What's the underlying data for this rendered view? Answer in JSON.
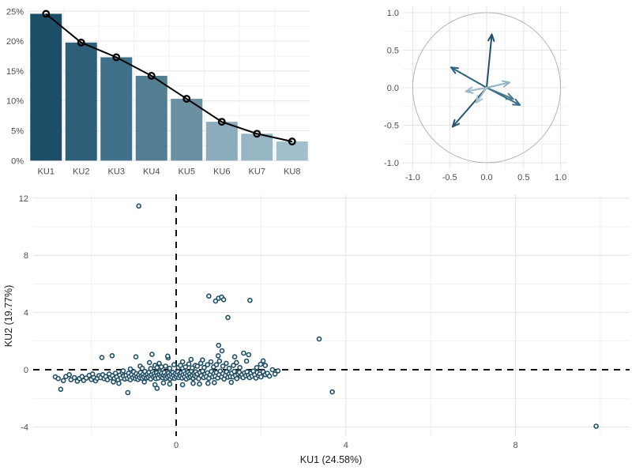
{
  "styles": {
    "background": "#ffffff",
    "grid_major": "#e4e4e4",
    "grid_minor": "#f1f1f1",
    "tick_label_color": "#4d4d4d",
    "axis_title_color": "#1a1a1a"
  },
  "chart_data": [
    {
      "id": "scree",
      "type": "bar",
      "title": "",
      "categories": [
        "KU1",
        "KU2",
        "KU3",
        "KU4",
        "KU5",
        "KU6",
        "KU7",
        "KU8"
      ],
      "values": [
        24.58,
        19.77,
        17.3,
        14.2,
        10.35,
        6.5,
        4.5,
        3.2
      ],
      "value_format": "percent",
      "bar_colors": [
        "#1d4e68",
        "#2f5e78",
        "#41708a",
        "#537e92",
        "#6b90a2",
        "#8aacbc",
        "#97b6c4",
        "#a3bfcb"
      ],
      "line_color": "#000000",
      "marker": "open-circle",
      "y_ticks": [
        "0%",
        "5%",
        "10%",
        "15%",
        "20%",
        "25%"
      ],
      "y_tick_values": [
        0,
        5,
        10,
        15,
        20,
        25
      ],
      "ylim": [
        0,
        26
      ],
      "grid": true,
      "legend": "none"
    },
    {
      "id": "var_circle",
      "type": "scatter",
      "subtype": "pca-correlation-circle",
      "title": "",
      "x_ticks": [
        "-1.0",
        "-0.5",
        "0.0",
        "0.5",
        "1.0"
      ],
      "y_ticks": [
        "-1.0",
        "-0.5",
        "0.0",
        "0.5",
        "1.0"
      ],
      "tick_values": [
        -1,
        -0.5,
        0,
        0.5,
        1
      ],
      "xlim": [
        -1.15,
        1.1
      ],
      "ylim": [
        -1.1,
        1.1
      ],
      "circle_color": "#b3b3b3",
      "grid": true,
      "arrows": [
        {
          "x": 0.07,
          "y": 0.71,
          "color": "#1f5066"
        },
        {
          "x": -0.48,
          "y": 0.27,
          "color": "#2e617c"
        },
        {
          "x": -0.46,
          "y": -0.52,
          "color": "#235572"
        },
        {
          "x": 0.45,
          "y": -0.23,
          "color": "#3a6c86"
        },
        {
          "x": 0.36,
          "y": -0.15,
          "color": "#4a7a92"
        },
        {
          "x": 0.31,
          "y": 0.07,
          "color": "#8fb2c3"
        },
        {
          "x": -0.28,
          "y": -0.05,
          "color": "#9bbac8"
        },
        {
          "x": -0.14,
          "y": -0.2,
          "color": "#a9c3ce"
        }
      ]
    },
    {
      "id": "scores",
      "type": "scatter",
      "title": "",
      "xlabel": "KU1 (24.58%)",
      "ylabel": "KU2 (19.77%)",
      "x_ticks": [
        "0",
        "4",
        "8"
      ],
      "x_tick_values": [
        0,
        4,
        8
      ],
      "y_ticks": [
        "-4",
        "0",
        "4",
        "8",
        "12"
      ],
      "y_tick_values": [
        -4,
        0,
        4,
        8,
        12
      ],
      "x_minor": [
        -2,
        2,
        6,
        10
      ],
      "y_minor": [
        -2,
        2,
        6,
        10
      ],
      "xlim": [
        -3.4,
        10.7
      ],
      "ylim": [
        -4.5,
        12.3
      ],
      "ref_lines": {
        "x": 0,
        "y": 0,
        "style": "dashed",
        "color": "#111111"
      },
      "point_color": "#1f4e66",
      "grid": true,
      "points": [
        [
          -2.85,
          -0.5
        ],
        [
          -2.78,
          -0.62
        ],
        [
          -2.72,
          -1.37
        ],
        [
          -2.66,
          -0.76
        ],
        [
          -2.6,
          -0.48
        ],
        [
          -2.52,
          -0.35
        ],
        [
          -2.48,
          -0.7
        ],
        [
          -2.4,
          -0.55
        ],
        [
          -2.33,
          -0.8
        ],
        [
          -2.28,
          -0.62
        ],
        [
          -2.22,
          -0.48
        ],
        [
          -2.18,
          -0.75
        ],
        [
          -2.12,
          -0.58
        ],
        [
          -2.05,
          -0.4
        ],
        [
          -2.0,
          -0.68
        ],
        [
          -1.95,
          -0.52
        ],
        [
          -1.9,
          -0.78
        ],
        [
          -1.86,
          -0.6
        ],
        [
          -1.82,
          -0.42
        ],
        [
          -1.97,
          -0.3
        ],
        [
          -1.78,
          -0.55
        ],
        [
          -1.73,
          -0.35
        ],
        [
          -1.7,
          -0.62
        ],
        [
          -1.66,
          -0.48
        ],
        [
          -1.62,
          -0.7
        ],
        [
          -1.58,
          -0.3
        ],
        [
          -1.55,
          -0.55
        ],
        [
          -1.5,
          -0.42
        ],
        [
          -1.46,
          -0.62
        ],
        [
          -1.43,
          -0.25
        ],
        [
          -1.4,
          -0.5
        ],
        [
          -1.37,
          -0.72
        ],
        [
          -1.33,
          -0.38
        ],
        [
          -1.3,
          -0.58
        ],
        [
          -1.27,
          -0.2
        ],
        [
          -1.24,
          -0.45
        ],
        [
          -1.21,
          -0.65
        ],
        [
          -1.48,
          -0.85
        ],
        [
          -1.35,
          -0.95
        ],
        [
          -1.25,
          -0.08
        ],
        [
          -1.18,
          -0.4
        ],
        [
          -1.15,
          -0.6
        ],
        [
          -1.12,
          -0.25
        ],
        [
          -1.1,
          -0.48
        ],
        [
          -1.08,
          -0.7
        ],
        [
          -1.05,
          -0.35
        ],
        [
          -1.02,
          -0.55
        ],
        [
          -1.0,
          -0.15
        ],
        [
          -0.98,
          -0.42
        ],
        [
          -0.96,
          -0.62
        ],
        [
          -0.94,
          -0.28
        ],
        [
          -0.92,
          -0.5
        ],
        [
          -0.9,
          -0.68
        ],
        [
          -0.88,
          -0.38
        ],
        [
          -0.86,
          -0.55
        ],
        [
          -0.84,
          -0.2
        ],
        [
          -0.82,
          -0.45
        ],
        [
          -0.8,
          -0.6
        ],
        [
          -0.78,
          -0.32
        ],
        [
          -0.76,
          -0.5
        ],
        [
          -0.74,
          -0.12
        ],
        [
          -0.72,
          -0.4
        ],
        [
          -0.7,
          -0.58
        ],
        [
          -0.85,
          0.25
        ],
        [
          -0.8,
          0.1
        ],
        [
          -1.08,
          0.05
        ],
        [
          -0.68,
          -0.3
        ],
        [
          -0.66,
          -0.52
        ],
        [
          -0.64,
          -0.18
        ],
        [
          -0.62,
          -0.42
        ],
        [
          -0.6,
          -0.65
        ],
        [
          -0.58,
          -0.35
        ],
        [
          -0.56,
          -0.12
        ],
        [
          -0.54,
          -0.5
        ],
        [
          -0.52,
          -0.28
        ],
        [
          -0.5,
          -0.45
        ],
        [
          -0.48,
          -0.62
        ],
        [
          -0.46,
          -0.22
        ],
        [
          -0.44,
          -0.4
        ],
        [
          -0.42,
          -0.58
        ],
        [
          -0.4,
          -0.3
        ],
        [
          -0.38,
          -0.15
        ],
        [
          -0.36,
          -0.48
        ],
        [
          -0.34,
          -0.25
        ],
        [
          -0.32,
          -0.55
        ],
        [
          -0.3,
          -0.38
        ],
        [
          -0.5,
          0.3
        ],
        [
          -0.45,
          0.15
        ],
        [
          -0.4,
          0.45
        ],
        [
          -0.35,
          0.2
        ],
        [
          -0.6,
          0.08
        ],
        [
          -0.63,
          0.5
        ],
        [
          -0.28,
          -0.2
        ],
        [
          -0.26,
          -0.45
        ],
        [
          -0.24,
          -0.6
        ],
        [
          -0.22,
          -0.32
        ],
        [
          -0.2,
          -0.5
        ],
        [
          -0.18,
          -0.25
        ],
        [
          -0.16,
          -0.42
        ],
        [
          -0.14,
          -0.65
        ],
        [
          -0.12,
          -0.3
        ],
        [
          -0.1,
          -0.52
        ],
        [
          -0.08,
          -0.18
        ],
        [
          -0.06,
          -0.4
        ],
        [
          -0.04,
          -0.6
        ],
        [
          -0.02,
          -0.28
        ],
        [
          0.0,
          -0.48
        ],
        [
          0.02,
          -0.35
        ],
        [
          0.04,
          -0.15
        ],
        [
          0.06,
          -0.55
        ],
        [
          0.08,
          -0.3
        ],
        [
          -0.25,
          0.25
        ],
        [
          -0.15,
          0.1
        ],
        [
          -0.19,
          0.83
        ],
        [
          -0.05,
          0.35
        ],
        [
          0.05,
          0.15
        ],
        [
          0.1,
          -0.45
        ],
        [
          0.12,
          -0.22
        ],
        [
          0.14,
          -0.58
        ],
        [
          0.16,
          -0.35
        ],
        [
          0.18,
          -0.12
        ],
        [
          0.2,
          -0.5
        ],
        [
          0.22,
          -0.28
        ],
        [
          0.24,
          -0.65
        ],
        [
          0.26,
          -0.4
        ],
        [
          0.28,
          -0.18
        ],
        [
          0.3,
          -0.55
        ],
        [
          0.32,
          -0.3
        ],
        [
          0.34,
          -0.48
        ],
        [
          0.36,
          -0.1
        ],
        [
          0.38,
          -0.38
        ],
        [
          0.4,
          -0.6
        ],
        [
          0.42,
          -0.25
        ],
        [
          0.44,
          -0.45
        ],
        [
          0.1,
          0.3
        ],
        [
          0.15,
          0.55
        ],
        [
          0.22,
          0.2
        ],
        [
          0.3,
          0.4
        ],
        [
          0.38,
          0.12
        ],
        [
          0.45,
          0.3
        ],
        [
          0.35,
          0.72
        ],
        [
          0.62,
          0.68
        ],
        [
          0.46,
          -0.15
        ],
        [
          0.48,
          -0.52
        ],
        [
          0.5,
          -0.3
        ],
        [
          0.53,
          -0.62
        ],
        [
          0.56,
          -0.2
        ],
        [
          0.59,
          -0.42
        ],
        [
          0.62,
          -0.1
        ],
        [
          0.65,
          -0.55
        ],
        [
          0.68,
          -0.32
        ],
        [
          0.71,
          -0.48
        ],
        [
          0.74,
          -0.22
        ],
        [
          0.77,
          -0.6
        ],
        [
          0.8,
          -0.35
        ],
        [
          0.83,
          -0.12
        ],
        [
          0.86,
          -0.5
        ],
        [
          0.89,
          -0.28
        ],
        [
          0.5,
          0.25
        ],
        [
          0.58,
          0.45
        ],
        [
          0.66,
          0.15
        ],
        [
          0.74,
          0.35
        ],
        [
          0.82,
          0.55
        ],
        [
          0.88,
          0.2
        ],
        [
          0.92,
          -0.45
        ],
        [
          0.95,
          -0.2
        ],
        [
          0.98,
          -0.58
        ],
        [
          1.01,
          -0.35
        ],
        [
          1.04,
          -0.1
        ],
        [
          1.07,
          -0.5
        ],
        [
          1.1,
          -0.28
        ],
        [
          1.13,
          -0.65
        ],
        [
          1.16,
          -0.4
        ],
        [
          1.19,
          -0.15
        ],
        [
          1.22,
          -0.52
        ],
        [
          1.25,
          -0.3
        ],
        [
          1.28,
          -0.48
        ],
        [
          0.95,
          0.35
        ],
        [
          1.02,
          0.6
        ],
        [
          1.1,
          0.25
        ],
        [
          1.18,
          0.45
        ],
        [
          1.25,
          0.1
        ],
        [
          1.31,
          -0.25
        ],
        [
          1.34,
          -0.5
        ],
        [
          1.37,
          -0.12
        ],
        [
          1.4,
          -0.4
        ],
        [
          1.43,
          -0.62
        ],
        [
          1.46,
          -0.3
        ],
        [
          1.49,
          -0.18
        ],
        [
          1.52,
          -0.45
        ],
        [
          1.55,
          -0.35
        ],
        [
          1.58,
          -0.55
        ],
        [
          1.61,
          -0.22
        ],
        [
          1.64,
          -0.42
        ],
        [
          1.35,
          0.3
        ],
        [
          1.42,
          0.5
        ],
        [
          1.5,
          0.15
        ],
        [
          1.66,
          0.6
        ],
        [
          1.67,
          -0.15
        ],
        [
          1.7,
          -0.38
        ],
        [
          1.73,
          -0.55
        ],
        [
          1.76,
          -0.25
        ],
        [
          1.79,
          -0.45
        ],
        [
          1.82,
          -0.1
        ],
        [
          1.85,
          -0.35
        ],
        [
          1.88,
          -0.58
        ],
        [
          1.91,
          -0.2
        ],
        [
          1.94,
          -0.42
        ],
        [
          1.97,
          -0.3
        ],
        [
          2.0,
          -0.5
        ],
        [
          2.05,
          -0.15
        ],
        [
          2.1,
          -0.35
        ],
        [
          2.15,
          -0.25
        ],
        [
          2.2,
          -0.45
        ],
        [
          2.27,
          0.0
        ],
        [
          2.33,
          -0.3
        ],
        [
          2.4,
          -0.08
        ],
        [
          2.1,
          0.3
        ],
        [
          1.9,
          0.15
        ],
        [
          2.05,
          0.62
        ],
        [
          -0.5,
          -1.05
        ],
        [
          -0.15,
          -1.0
        ],
        [
          0.15,
          -1.05
        ],
        [
          0.55,
          -1.0
        ],
        [
          -0.3,
          -0.92
        ],
        [
          0.75,
          -0.95
        ],
        [
          -0.45,
          -1.3
        ],
        [
          0.4,
          -0.95
        ],
        [
          0.9,
          -0.9
        ],
        [
          1.3,
          -0.88
        ],
        [
          -0.75,
          -0.85
        ],
        [
          1.0,
          1.7
        ],
        [
          1.08,
          1.32
        ],
        [
          0.99,
          0.97
        ],
        [
          1.59,
          1.16
        ],
        [
          1.38,
          0.9
        ],
        [
          1.99,
          0.38
        ],
        [
          1.71,
          1.05
        ],
        [
          -0.57,
          1.08
        ],
        [
          -0.2,
          0.95
        ],
        [
          -0.95,
          0.9
        ],
        [
          -1.51,
          0.98
        ],
        [
          -1.75,
          0.85
        ],
        [
          -0.88,
          11.45
        ],
        [
          0.77,
          5.15
        ],
        [
          0.93,
          4.8
        ],
        [
          1.0,
          5.0
        ],
        [
          1.07,
          5.08
        ],
        [
          1.12,
          4.9
        ],
        [
          1.74,
          4.85
        ],
        [
          1.22,
          3.65
        ],
        [
          3.37,
          2.15
        ],
        [
          3.68,
          -1.55
        ],
        [
          9.9,
          -3.95
        ],
        [
          -1.14,
          -1.6
        ]
      ]
    }
  ]
}
